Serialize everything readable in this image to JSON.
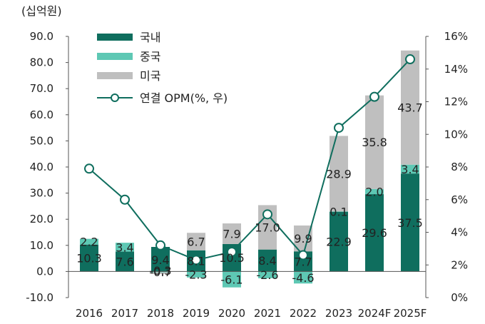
{
  "chart_data": {
    "type": "bar",
    "unit_label": "(십억원)",
    "categories": [
      "2016",
      "2017",
      "2018",
      "2019",
      "2020",
      "2021",
      "2022",
      "2023",
      "2024F",
      "2025F"
    ],
    "series": [
      {
        "name": "국내",
        "color": "#0f6e5e",
        "values": [
          10.3,
          7.6,
          9.4,
          8.1,
          10.5,
          8.4,
          7.7,
          22.9,
          29.6,
          37.5
        ],
        "labels": [
          "10.3",
          "7.6",
          "9.4",
          "8.1",
          "10.5",
          "8.4",
          "7.7",
          "22.9",
          "29.6",
          "37.5"
        ]
      },
      {
        "name": "중국",
        "color": "#5ec8b4",
        "values": [
          2.2,
          3.4,
          -0.3,
          -2.3,
          -6.1,
          -2.6,
          -4.6,
          0.1,
          2.0,
          3.4
        ],
        "labels": [
          "2.2",
          "3.4",
          "-0.3",
          "-2.3",
          "-6.1",
          "-2.6",
          "-4.6",
          "0.1",
          "2.0",
          "3.4"
        ]
      },
      {
        "name": "미국",
        "color": "#bfbfbf",
        "values": [
          0,
          0,
          -0.7,
          6.7,
          7.9,
          17.0,
          9.9,
          28.9,
          35.8,
          43.7
        ],
        "labels": [
          "",
          "",
          "-0.7",
          "6.7",
          "7.9",
          "17.0",
          "9.9",
          "28.9",
          "35.8",
          "43.7"
        ]
      },
      {
        "name": "연결 OPM(%, 우)",
        "type": "line",
        "axis": "right",
        "color": "#0f6e5e",
        "values": [
          7.9,
          6.0,
          3.2,
          2.3,
          2.8,
          5.1,
          2.6,
          10.4,
          12.3,
          14.6
        ]
      }
    ],
    "y_left": {
      "min": -10,
      "max": 90,
      "step": 10,
      "ticks": [
        "-10.0",
        "0.0",
        "10.0",
        "20.0",
        "30.0",
        "40.0",
        "50.0",
        "60.0",
        "70.0",
        "80.0",
        "90.0"
      ]
    },
    "y_right": {
      "min": 0,
      "max": 16,
      "step": 2,
      "ticks": [
        "0%",
        "2%",
        "4%",
        "6%",
        "8%",
        "10%",
        "12%",
        "14%",
        "16%"
      ]
    },
    "grid": false,
    "legend_position": "top-left"
  }
}
